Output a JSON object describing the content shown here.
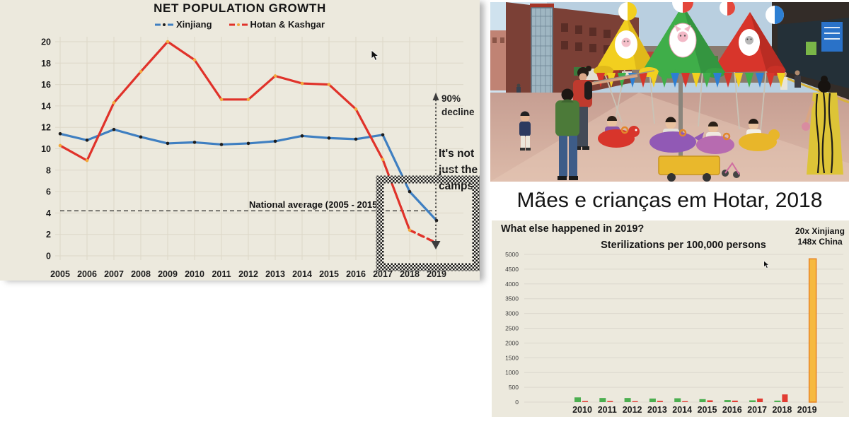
{
  "page": {
    "background": "#ffffff",
    "panel_background": "#ece9dd"
  },
  "photo": {
    "caption": "Mães e crianças em Hotar, 2018"
  },
  "right_section": {
    "heading": "What else happened in 2019?"
  },
  "chart_data": [
    {
      "type": "line",
      "title": "NET POPULATION GROWTH",
      "x": [
        2005,
        2006,
        2007,
        2008,
        2009,
        2010,
        2011,
        2012,
        2013,
        2014,
        2015,
        2016,
        2017,
        2018,
        2019
      ],
      "series": [
        {
          "name": "Xinjiang",
          "color": "#3f7fc1",
          "marker_color": "#1d1d1d",
          "values": [
            11.4,
            10.8,
            11.8,
            11.1,
            10.5,
            10.6,
            10.4,
            10.5,
            10.7,
            11.2,
            11.0,
            10.9,
            11.3,
            6.0,
            3.3
          ]
        },
        {
          "name": "Hotan & Kashgar",
          "color": "#e0322a",
          "marker_color": "#f2a93b",
          "dashed_from_index": 13,
          "values": [
            10.3,
            8.9,
            14.3,
            17.2,
            20.0,
            18.3,
            14.6,
            14.6,
            16.8,
            16.1,
            16.0,
            13.7,
            9.0,
            2.4,
            1.2
          ]
        }
      ],
      "ylim": [
        0,
        20
      ],
      "ytick_step": 2,
      "grid": true,
      "legend_position": "top",
      "reference_line": {
        "label": "National average (2005 - 2015)",
        "value": 4.2
      },
      "annotations": [
        {
          "text": "90% decline"
        },
        {
          "text": "It's not just the camps"
        }
      ],
      "highlight_box_years": [
        2017,
        2019
      ]
    },
    {
      "type": "bar",
      "title": "Sterilizations per 100,000 persons",
      "categories": [
        2010,
        2011,
        2012,
        2013,
        2014,
        2015,
        2016,
        2017,
        2018,
        2019
      ],
      "series": [
        {
          "name": "green",
          "color": "#4caf50",
          "values": [
            160,
            140,
            140,
            120,
            130,
            100,
            70,
            60,
            50,
            0
          ]
        },
        {
          "name": "red",
          "color": "#e23c32",
          "values": [
            35,
            35,
            30,
            40,
            30,
            60,
            50,
            120,
            260,
            0
          ]
        },
        {
          "name": "orange-2019",
          "color": "#f6b93f",
          "border_color": "#e8882a",
          "values": [
            0,
            0,
            0,
            0,
            0,
            0,
            0,
            0,
            0,
            4850
          ]
        }
      ],
      "ylim": [
        0,
        5000
      ],
      "ytick_step": 500,
      "grid": true,
      "annotation_lines": [
        "20x Xinjiang",
        "148x China"
      ]
    }
  ]
}
